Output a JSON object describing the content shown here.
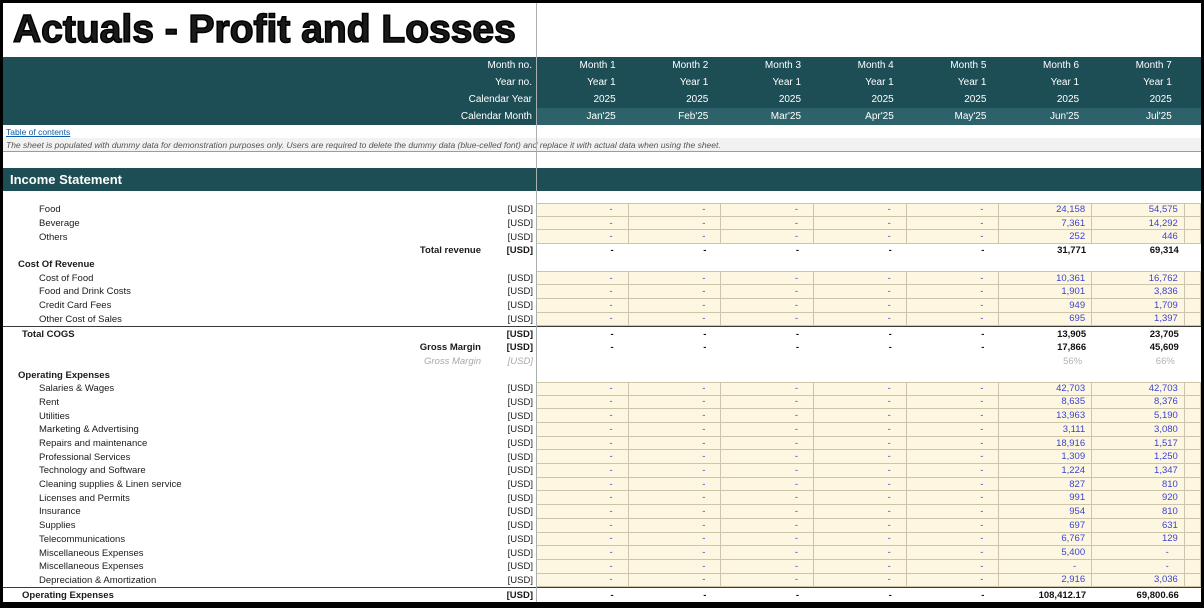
{
  "title": "Actuals - Profit and Losses",
  "toc_link": "Table of contents",
  "note": "The sheet is populated with dummy data for demonstration purposes only. Users are required to delete the dummy data (blue-celled font) and replace it with actual data when using the sheet.",
  "section_title": "Income Statement",
  "colors": {
    "teal_dark": "#1d4e55",
    "teal_light": "#2d626b",
    "dummy_cell_bg": "#fdf7e2",
    "dummy_font_blue": "#3c43cf",
    "link_blue": "#0b5cab"
  },
  "header": {
    "row_labels": [
      "Month no.",
      "Year no.",
      "Calendar Year",
      "Calendar Month"
    ],
    "columns": [
      {
        "month_no": "Month 1",
        "year_no": "Year 1",
        "calendar_year": "2025",
        "calendar_month": "Jan'25"
      },
      {
        "month_no": "Month 2",
        "year_no": "Year 1",
        "calendar_year": "2025",
        "calendar_month": "Feb'25"
      },
      {
        "month_no": "Month 3",
        "year_no": "Year 1",
        "calendar_year": "2025",
        "calendar_month": "Mar'25"
      },
      {
        "month_no": "Month 4",
        "year_no": "Year 1",
        "calendar_year": "2025",
        "calendar_month": "Apr'25"
      },
      {
        "month_no": "Month 5",
        "year_no": "Year 1",
        "calendar_year": "2025",
        "calendar_month": "May'25"
      },
      {
        "month_no": "Month 6",
        "year_no": "Year 1",
        "calendar_year": "2025",
        "calendar_month": "Jun'25"
      },
      {
        "month_no": "Month 7",
        "year_no": "Year 1",
        "calendar_year": "2025",
        "calendar_month": "Jul'25"
      }
    ]
  },
  "rows": [
    {
      "label": "Food",
      "unit": "[USD]",
      "style": "input",
      "values": [
        "-",
        "-",
        "-",
        "-",
        "-",
        "24,158",
        "54,575"
      ]
    },
    {
      "label": "Beverage",
      "unit": "[USD]",
      "style": "input",
      "values": [
        "-",
        "-",
        "-",
        "-",
        "-",
        "7,361",
        "14,292"
      ]
    },
    {
      "label": "Others",
      "unit": "[USD]",
      "style": "input",
      "values": [
        "-",
        "-",
        "-",
        "-",
        "-",
        "252",
        "446"
      ]
    },
    {
      "label": "Total revenue",
      "unit": "[USD]",
      "style": "total_right",
      "values": [
        "-",
        "-",
        "-",
        "-",
        "-",
        "31,771",
        "69,314"
      ]
    },
    {
      "label": "Cost Of Revenue",
      "unit": "",
      "style": "section",
      "values": [
        "",
        "",
        "",
        "",
        "",
        "",
        ""
      ]
    },
    {
      "label": "Cost of Food",
      "unit": "[USD]",
      "style": "input",
      "values": [
        "-",
        "-",
        "-",
        "-",
        "-",
        "10,361",
        "16,762"
      ]
    },
    {
      "label": "Food and Drink Costs",
      "unit": "[USD]",
      "style": "input",
      "values": [
        "-",
        "-",
        "-",
        "-",
        "-",
        "1,901",
        "3,836"
      ]
    },
    {
      "label": "Credit Card Fees",
      "unit": "[USD]",
      "style": "input",
      "values": [
        "-",
        "-",
        "-",
        "-",
        "-",
        "949",
        "1,709"
      ]
    },
    {
      "label": "Other  Cost of Sales",
      "unit": "[USD]",
      "style": "input",
      "values": [
        "-",
        "-",
        "-",
        "-",
        "-",
        "695",
        "1,397"
      ]
    },
    {
      "label": "Total COGS",
      "unit": "[USD]",
      "style": "total_left",
      "topline": true,
      "values": [
        "-",
        "-",
        "-",
        "-",
        "-",
        "13,905",
        "23,705"
      ]
    },
    {
      "label": "Gross Margin",
      "unit": "[USD]",
      "style": "total_right",
      "values": [
        "-",
        "-",
        "-",
        "-",
        "-",
        "17,866",
        "45,609"
      ]
    },
    {
      "label": "Gross Margin",
      "unit": "[USD]",
      "style": "percent",
      "values": [
        "",
        "",
        "",
        "",
        "",
        "56%",
        "66%"
      ]
    },
    {
      "label": "Operating Expenses",
      "unit": "",
      "style": "section",
      "values": [
        "",
        "",
        "",
        "",
        "",
        "",
        ""
      ]
    },
    {
      "label": "Salaries & Wages",
      "unit": "[USD]",
      "style": "input",
      "values": [
        "-",
        "-",
        "-",
        "-",
        "-",
        "42,703",
        "42,703"
      ]
    },
    {
      "label": "Rent",
      "unit": "[USD]",
      "style": "input",
      "values": [
        "-",
        "-",
        "-",
        "-",
        "-",
        "8,635",
        "8,376"
      ]
    },
    {
      "label": "Utilities",
      "unit": "[USD]",
      "style": "input",
      "values": [
        "-",
        "-",
        "-",
        "-",
        "-",
        "13,963",
        "5,190"
      ]
    },
    {
      "label": "Marketing & Advertising",
      "unit": "[USD]",
      "style": "input",
      "values": [
        "-",
        "-",
        "-",
        "-",
        "-",
        "3,111",
        "3,080"
      ]
    },
    {
      "label": "Repairs and maintenance",
      "unit": "[USD]",
      "style": "input",
      "values": [
        "-",
        "-",
        "-",
        "-",
        "-",
        "18,916",
        "1,517"
      ]
    },
    {
      "label": "Professional Services",
      "unit": "[USD]",
      "style": "input",
      "values": [
        "-",
        "-",
        "-",
        "-",
        "-",
        "1,309",
        "1,250"
      ]
    },
    {
      "label": "Technology and Software",
      "unit": "[USD]",
      "style": "input",
      "values": [
        "-",
        "-",
        "-",
        "-",
        "-",
        "1,224",
        "1,347"
      ]
    },
    {
      "label": "Cleaning supplies & Linen service",
      "unit": "[USD]",
      "style": "input",
      "values": [
        "-",
        "-",
        "-",
        "-",
        "-",
        "827",
        "810"
      ]
    },
    {
      "label": "Licenses and Permits",
      "unit": "[USD]",
      "style": "input",
      "values": [
        "-",
        "-",
        "-",
        "-",
        "-",
        "991",
        "920"
      ]
    },
    {
      "label": "Insurance",
      "unit": "[USD]",
      "style": "input",
      "values": [
        "-",
        "-",
        "-",
        "-",
        "-",
        "954",
        "810"
      ]
    },
    {
      "label": "Supplies",
      "unit": "[USD]",
      "style": "input",
      "values": [
        "-",
        "-",
        "-",
        "-",
        "-",
        "697",
        "631"
      ]
    },
    {
      "label": "Telecommunications",
      "unit": "[USD]",
      "style": "input",
      "values": [
        "-",
        "-",
        "-",
        "-",
        "-",
        "6,767",
        "129"
      ]
    },
    {
      "label": "Miscellaneous Expenses",
      "unit": "[USD]",
      "style": "input",
      "values": [
        "-",
        "-",
        "-",
        "-",
        "-",
        "5,400",
        "-"
      ]
    },
    {
      "label": "Miscellaneous Expenses",
      "unit": "[USD]",
      "style": "input",
      "values": [
        "-",
        "-",
        "-",
        "-",
        "-",
        "-",
        "-"
      ]
    },
    {
      "label": "Depreciation & Amortization",
      "unit": "[USD]",
      "style": "input",
      "values": [
        "-",
        "-",
        "-",
        "-",
        "-",
        "2,916",
        "3,036"
      ]
    },
    {
      "label": "Operating Expenses",
      "unit": "[USD]",
      "style": "total_left",
      "topline": true,
      "values": [
        "-",
        "-",
        "-",
        "-",
        "-",
        "108,412.17",
        "69,800.66"
      ]
    }
  ]
}
